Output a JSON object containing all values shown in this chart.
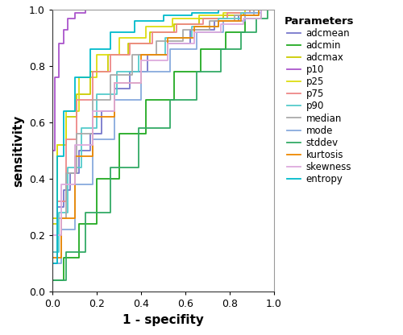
{
  "xlabel": "1 - specifity",
  "ylabel": "sensitivity",
  "xlim": [
    0.0,
    1.0
  ],
  "ylim": [
    0.0,
    1.0
  ],
  "xticks": [
    0.0,
    0.2,
    0.4,
    0.6,
    0.8,
    1.0
  ],
  "yticks": [
    0.0,
    0.2,
    0.4,
    0.6,
    0.8,
    1.0
  ],
  "legend_title": "Parameters",
  "curves": [
    {
      "name": "adcmean",
      "color": "#7777cc",
      "fpr": [
        0.0,
        0.0,
        0.02,
        0.02,
        0.05,
        0.05,
        0.08,
        0.08,
        0.12,
        0.12,
        0.17,
        0.17,
        0.22,
        0.22,
        0.28,
        0.28,
        0.35,
        0.35,
        0.43,
        0.43,
        0.52,
        0.52,
        0.62,
        0.62,
        0.73,
        0.73,
        0.84,
        0.84,
        0.93,
        0.93,
        1.0
      ],
      "tpr": [
        0.0,
        0.24,
        0.24,
        0.3,
        0.3,
        0.36,
        0.36,
        0.42,
        0.42,
        0.5,
        0.5,
        0.56,
        0.56,
        0.64,
        0.64,
        0.72,
        0.72,
        0.78,
        0.78,
        0.84,
        0.84,
        0.88,
        0.88,
        0.93,
        0.93,
        0.96,
        0.96,
        0.98,
        0.98,
        1.0,
        1.0
      ]
    },
    {
      "name": "adcmin",
      "color": "#22aa22",
      "fpr": [
        0.0,
        0.0,
        0.05,
        0.05,
        0.12,
        0.12,
        0.2,
        0.2,
        0.3,
        0.3,
        0.42,
        0.42,
        0.55,
        0.55,
        0.67,
        0.67,
        0.78,
        0.78,
        0.87,
        0.87,
        0.94,
        0.94,
        1.0
      ],
      "tpr": [
        0.0,
        0.04,
        0.04,
        0.12,
        0.12,
        0.24,
        0.24,
        0.4,
        0.4,
        0.56,
        0.56,
        0.68,
        0.68,
        0.78,
        0.78,
        0.86,
        0.86,
        0.92,
        0.92,
        0.97,
        0.97,
        1.0,
        1.0
      ]
    },
    {
      "name": "adcmax",
      "color": "#cccc00",
      "fpr": [
        0.0,
        0.0,
        0.02,
        0.02,
        0.06,
        0.06,
        0.11,
        0.11,
        0.17,
        0.17,
        0.25,
        0.25,
        0.34,
        0.34,
        0.44,
        0.44,
        0.55,
        0.55,
        0.66,
        0.66,
        0.77,
        0.77,
        0.86,
        0.86,
        0.93,
        0.93,
        1.0
      ],
      "tpr": [
        0.0,
        0.26,
        0.26,
        0.52,
        0.52,
        0.62,
        0.62,
        0.7,
        0.7,
        0.78,
        0.78,
        0.84,
        0.84,
        0.88,
        0.88,
        0.92,
        0.92,
        0.95,
        0.95,
        0.97,
        0.97,
        0.98,
        0.98,
        0.99,
        0.99,
        1.0,
        1.0
      ]
    },
    {
      "name": "p10",
      "color": "#aa55cc",
      "fpr": [
        0.0,
        0.0,
        0.01,
        0.01,
        0.03,
        0.03,
        0.05,
        0.05,
        0.07,
        0.07,
        0.1,
        0.1,
        0.15,
        0.15,
        0.22,
        0.22,
        0.32,
        0.32,
        0.45,
        0.45,
        0.6,
        0.6,
        0.75,
        0.75,
        0.88,
        0.88,
        1.0
      ],
      "tpr": [
        0.0,
        0.5,
        0.5,
        0.76,
        0.76,
        0.88,
        0.88,
        0.93,
        0.93,
        0.97,
        0.97,
        0.99,
        0.99,
        1.0,
        1.0,
        1.0,
        1.0,
        1.0,
        1.0,
        1.0,
        1.0,
        1.0,
        1.0,
        1.0,
        1.0,
        1.0,
        1.0
      ]
    },
    {
      "name": "p25",
      "color": "#dddd11",
      "fpr": [
        0.0,
        0.0,
        0.02,
        0.02,
        0.06,
        0.06,
        0.12,
        0.12,
        0.2,
        0.2,
        0.3,
        0.3,
        0.42,
        0.42,
        0.54,
        0.54,
        0.66,
        0.66,
        0.77,
        0.77,
        0.87,
        0.87,
        0.94,
        0.94,
        1.0
      ],
      "tpr": [
        0.0,
        0.24,
        0.24,
        0.52,
        0.52,
        0.64,
        0.64,
        0.76,
        0.76,
        0.84,
        0.84,
        0.9,
        0.9,
        0.94,
        0.94,
        0.97,
        0.97,
        0.98,
        0.98,
        0.99,
        0.99,
        1.0,
        1.0,
        1.0,
        1.0
      ]
    },
    {
      "name": "p75",
      "color": "#ee8888",
      "fpr": [
        0.0,
        0.0,
        0.02,
        0.02,
        0.06,
        0.06,
        0.11,
        0.11,
        0.18,
        0.18,
        0.26,
        0.26,
        0.35,
        0.35,
        0.45,
        0.45,
        0.56,
        0.56,
        0.68,
        0.68,
        0.79,
        0.79,
        0.89,
        0.89,
        1.0
      ],
      "tpr": [
        0.0,
        0.14,
        0.14,
        0.32,
        0.32,
        0.54,
        0.54,
        0.68,
        0.68,
        0.78,
        0.78,
        0.84,
        0.84,
        0.88,
        0.88,
        0.92,
        0.92,
        0.95,
        0.95,
        0.97,
        0.97,
        0.99,
        0.99,
        1.0,
        1.0
      ]
    },
    {
      "name": "p90",
      "color": "#55cccc",
      "fpr": [
        0.0,
        0.0,
        0.03,
        0.03,
        0.07,
        0.07,
        0.13,
        0.13,
        0.2,
        0.2,
        0.29,
        0.29,
        0.39,
        0.39,
        0.51,
        0.51,
        0.63,
        0.63,
        0.75,
        0.75,
        0.85,
        0.85,
        0.93,
        0.93,
        1.0
      ],
      "tpr": [
        0.0,
        0.14,
        0.14,
        0.28,
        0.28,
        0.44,
        0.44,
        0.58,
        0.58,
        0.7,
        0.7,
        0.78,
        0.78,
        0.84,
        0.84,
        0.9,
        0.9,
        0.94,
        0.94,
        0.97,
        0.97,
        0.99,
        0.99,
        1.0,
        1.0
      ]
    },
    {
      "name": "median",
      "color": "#aaaaaa",
      "fpr": [
        0.0,
        0.0,
        0.02,
        0.02,
        0.06,
        0.06,
        0.11,
        0.11,
        0.18,
        0.18,
        0.26,
        0.26,
        0.36,
        0.36,
        0.47,
        0.47,
        0.59,
        0.59,
        0.71,
        0.71,
        0.82,
        0.82,
        0.91,
        0.91,
        1.0
      ],
      "tpr": [
        0.0,
        0.1,
        0.1,
        0.26,
        0.26,
        0.42,
        0.42,
        0.56,
        0.56,
        0.68,
        0.68,
        0.77,
        0.77,
        0.84,
        0.84,
        0.89,
        0.89,
        0.93,
        0.93,
        0.96,
        0.96,
        0.98,
        0.98,
        1.0,
        1.0
      ]
    },
    {
      "name": "mode",
      "color": "#88aadd",
      "fpr": [
        0.0,
        0.0,
        0.04,
        0.04,
        0.1,
        0.1,
        0.18,
        0.18,
        0.28,
        0.28,
        0.4,
        0.4,
        0.53,
        0.53,
        0.65,
        0.65,
        0.77,
        0.77,
        0.87,
        0.87,
        0.94,
        0.94,
        1.0
      ],
      "tpr": [
        0.0,
        0.1,
        0.1,
        0.22,
        0.22,
        0.38,
        0.38,
        0.54,
        0.54,
        0.68,
        0.68,
        0.78,
        0.78,
        0.86,
        0.86,
        0.92,
        0.92,
        0.96,
        0.96,
        0.99,
        0.99,
        1.0,
        1.0
      ]
    },
    {
      "name": "stddev",
      "color": "#33aa66",
      "fpr": [
        0.0,
        0.0,
        0.06,
        0.06,
        0.15,
        0.15,
        0.26,
        0.26,
        0.39,
        0.39,
        0.53,
        0.53,
        0.65,
        0.65,
        0.76,
        0.76,
        0.85,
        0.85,
        0.92,
        0.92,
        0.97,
        0.97,
        1.0
      ],
      "tpr": [
        0.0,
        0.04,
        0.04,
        0.14,
        0.14,
        0.28,
        0.28,
        0.44,
        0.44,
        0.58,
        0.58,
        0.68,
        0.68,
        0.78,
        0.78,
        0.86,
        0.86,
        0.92,
        0.92,
        0.97,
        0.97,
        1.0,
        1.0
      ]
    },
    {
      "name": "kurtosis",
      "color": "#ee8800",
      "fpr": [
        0.0,
        0.0,
        0.04,
        0.04,
        0.1,
        0.1,
        0.18,
        0.18,
        0.28,
        0.28,
        0.4,
        0.4,
        0.52,
        0.52,
        0.64,
        0.64,
        0.75,
        0.75,
        0.85,
        0.85,
        0.93,
        0.93,
        1.0
      ],
      "tpr": [
        0.0,
        0.12,
        0.12,
        0.26,
        0.26,
        0.48,
        0.48,
        0.62,
        0.62,
        0.74,
        0.74,
        0.84,
        0.84,
        0.9,
        0.9,
        0.94,
        0.94,
        0.96,
        0.96,
        0.98,
        0.98,
        1.0,
        1.0
      ]
    },
    {
      "name": "skewness",
      "color": "#ddaadd",
      "fpr": [
        0.0,
        0.0,
        0.04,
        0.04,
        0.1,
        0.1,
        0.18,
        0.18,
        0.28,
        0.28,
        0.4,
        0.4,
        0.52,
        0.52,
        0.64,
        0.64,
        0.76,
        0.76,
        0.86,
        0.86,
        0.94,
        0.94,
        1.0
      ],
      "tpr": [
        0.0,
        0.2,
        0.2,
        0.38,
        0.38,
        0.52,
        0.52,
        0.64,
        0.64,
        0.74,
        0.74,
        0.82,
        0.82,
        0.88,
        0.88,
        0.92,
        0.92,
        0.95,
        0.95,
        0.97,
        0.97,
        1.0,
        1.0
      ]
    },
    {
      "name": "entropy",
      "color": "#00bbcc",
      "fpr": [
        0.0,
        0.0,
        0.02,
        0.02,
        0.05,
        0.05,
        0.1,
        0.1,
        0.17,
        0.17,
        0.26,
        0.26,
        0.37,
        0.37,
        0.5,
        0.5,
        0.63,
        0.63,
        0.75,
        0.75,
        0.85,
        0.85,
        0.93,
        0.93,
        1.0
      ],
      "tpr": [
        0.0,
        0.1,
        0.1,
        0.48,
        0.48,
        0.64,
        0.64,
        0.76,
        0.76,
        0.86,
        0.86,
        0.92,
        0.92,
        0.96,
        0.96,
        0.98,
        0.98,
        0.99,
        0.99,
        1.0,
        1.0,
        1.0,
        1.0,
        1.0,
        1.0
      ]
    }
  ],
  "figsize": [
    5.0,
    4.16
  ],
  "dpi": 100,
  "linewidth": 1.3
}
